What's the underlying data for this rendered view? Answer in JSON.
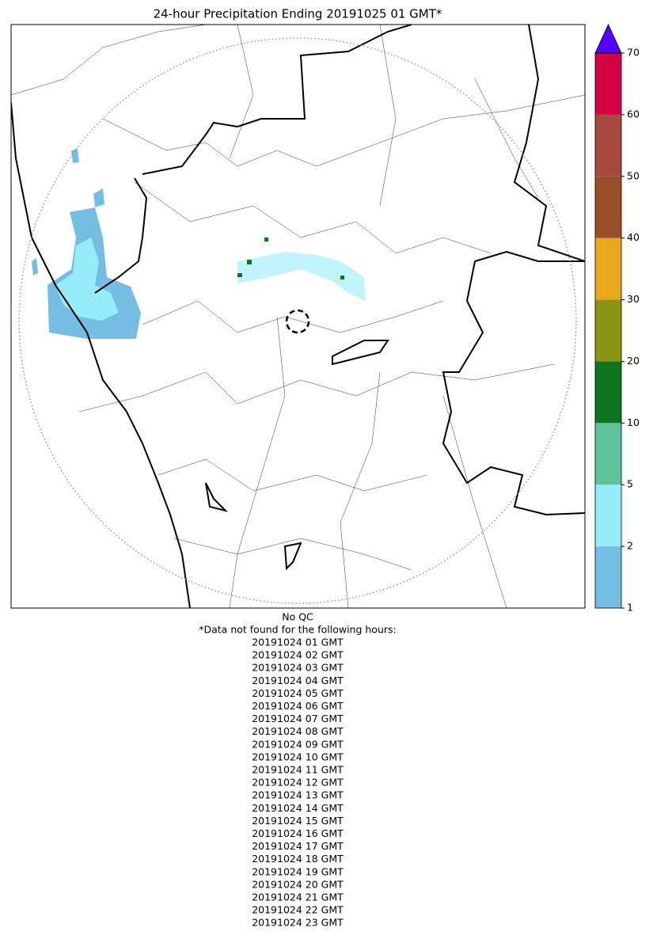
{
  "title": "24-hour Precipitation Ending 20191025 01 GMT*",
  "colorbar": {
    "levels": [
      1,
      2,
      5,
      10,
      20,
      30,
      40,
      50,
      60,
      70
    ],
    "colors": [
      "#75bde3",
      "#97ecfa",
      "#5ec39a",
      "#0e741d",
      "#8b9515",
      "#e7a91b",
      "#9b4f29",
      "#a7493f",
      "#d40043"
    ],
    "over_color": "#5300ff"
  },
  "notes": {
    "qc": "No QC",
    "missing_header": "*Data not found for the following hours:",
    "missing_hours": [
      "20191024 01 GMT",
      "20191024 02 GMT",
      "20191024 03 GMT",
      "20191024 04 GMT",
      "20191024 05 GMT",
      "20191024 06 GMT",
      "20191024 07 GMT",
      "20191024 08 GMT",
      "20191024 09 GMT",
      "20191024 10 GMT",
      "20191024 11 GMT",
      "20191024 12 GMT",
      "20191024 13 GMT",
      "20191024 14 GMT",
      "20191024 15 GMT",
      "20191024 16 GMT",
      "20191024 17 GMT",
      "20191024 18 GMT",
      "20191024 19 GMT",
      "20191024 20 GMT",
      "20191024 21 GMT",
      "20191024 22 GMT",
      "20191024 23 GMT"
    ]
  }
}
